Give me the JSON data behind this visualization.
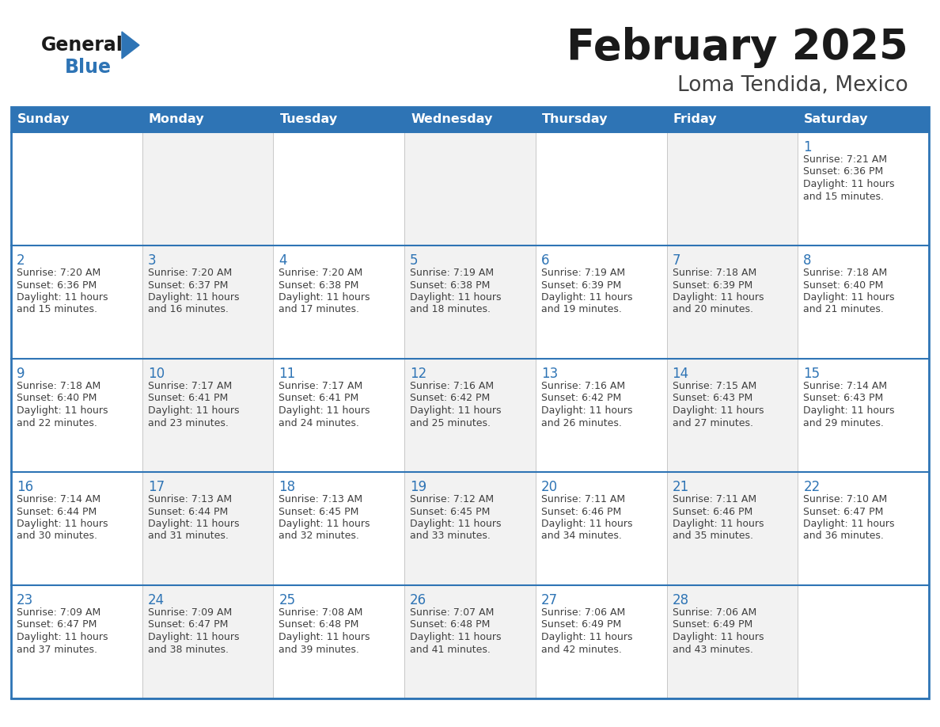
{
  "title": "February 2025",
  "subtitle": "Loma Tendida, Mexico",
  "days_of_week": [
    "Sunday",
    "Monday",
    "Tuesday",
    "Wednesday",
    "Thursday",
    "Friday",
    "Saturday"
  ],
  "header_bg": "#2E74B5",
  "header_text": "#FFFFFF",
  "cell_bg_white": "#FFFFFF",
  "cell_bg_gray": "#F2F2F2",
  "row_border_color": "#2E74B5",
  "col_border_color": "#C0C0C0",
  "day_number_color": "#2E74B5",
  "cell_text_color": "#404040",
  "title_color": "#1a1a1a",
  "subtitle_color": "#404040",
  "logo_general_color": "#1a1a1a",
  "logo_blue_color": "#2E74B5",
  "calendar_data": [
    [
      null,
      null,
      null,
      null,
      null,
      null,
      {
        "day": 1,
        "sunrise": "7:21 AM",
        "sunset": "6:36 PM",
        "daylight": "11 hours and 15 minutes."
      }
    ],
    [
      {
        "day": 2,
        "sunrise": "7:20 AM",
        "sunset": "6:36 PM",
        "daylight": "11 hours and 15 minutes."
      },
      {
        "day": 3,
        "sunrise": "7:20 AM",
        "sunset": "6:37 PM",
        "daylight": "11 hours and 16 minutes."
      },
      {
        "day": 4,
        "sunrise": "7:20 AM",
        "sunset": "6:38 PM",
        "daylight": "11 hours and 17 minutes."
      },
      {
        "day": 5,
        "sunrise": "7:19 AM",
        "sunset": "6:38 PM",
        "daylight": "11 hours and 18 minutes."
      },
      {
        "day": 6,
        "sunrise": "7:19 AM",
        "sunset": "6:39 PM",
        "daylight": "11 hours and 19 minutes."
      },
      {
        "day": 7,
        "sunrise": "7:18 AM",
        "sunset": "6:39 PM",
        "daylight": "11 hours and 20 minutes."
      },
      {
        "day": 8,
        "sunrise": "7:18 AM",
        "sunset": "6:40 PM",
        "daylight": "11 hours and 21 minutes."
      }
    ],
    [
      {
        "day": 9,
        "sunrise": "7:18 AM",
        "sunset": "6:40 PM",
        "daylight": "11 hours and 22 minutes."
      },
      {
        "day": 10,
        "sunrise": "7:17 AM",
        "sunset": "6:41 PM",
        "daylight": "11 hours and 23 minutes."
      },
      {
        "day": 11,
        "sunrise": "7:17 AM",
        "sunset": "6:41 PM",
        "daylight": "11 hours and 24 minutes."
      },
      {
        "day": 12,
        "sunrise": "7:16 AM",
        "sunset": "6:42 PM",
        "daylight": "11 hours and 25 minutes."
      },
      {
        "day": 13,
        "sunrise": "7:16 AM",
        "sunset": "6:42 PM",
        "daylight": "11 hours and 26 minutes."
      },
      {
        "day": 14,
        "sunrise": "7:15 AM",
        "sunset": "6:43 PM",
        "daylight": "11 hours and 27 minutes."
      },
      {
        "day": 15,
        "sunrise": "7:14 AM",
        "sunset": "6:43 PM",
        "daylight": "11 hours and 29 minutes."
      }
    ],
    [
      {
        "day": 16,
        "sunrise": "7:14 AM",
        "sunset": "6:44 PM",
        "daylight": "11 hours and 30 minutes."
      },
      {
        "day": 17,
        "sunrise": "7:13 AM",
        "sunset": "6:44 PM",
        "daylight": "11 hours and 31 minutes."
      },
      {
        "day": 18,
        "sunrise": "7:13 AM",
        "sunset": "6:45 PM",
        "daylight": "11 hours and 32 minutes."
      },
      {
        "day": 19,
        "sunrise": "7:12 AM",
        "sunset": "6:45 PM",
        "daylight": "11 hours and 33 minutes."
      },
      {
        "day": 20,
        "sunrise": "7:11 AM",
        "sunset": "6:46 PM",
        "daylight": "11 hours and 34 minutes."
      },
      {
        "day": 21,
        "sunrise": "7:11 AM",
        "sunset": "6:46 PM",
        "daylight": "11 hours and 35 minutes."
      },
      {
        "day": 22,
        "sunrise": "7:10 AM",
        "sunset": "6:47 PM",
        "daylight": "11 hours and 36 minutes."
      }
    ],
    [
      {
        "day": 23,
        "sunrise": "7:09 AM",
        "sunset": "6:47 PM",
        "daylight": "11 hours and 37 minutes."
      },
      {
        "day": 24,
        "sunrise": "7:09 AM",
        "sunset": "6:47 PM",
        "daylight": "11 hours and 38 minutes."
      },
      {
        "day": 25,
        "sunrise": "7:08 AM",
        "sunset": "6:48 PM",
        "daylight": "11 hours and 39 minutes."
      },
      {
        "day": 26,
        "sunrise": "7:07 AM",
        "sunset": "6:48 PM",
        "daylight": "11 hours and 41 minutes."
      },
      {
        "day": 27,
        "sunrise": "7:06 AM",
        "sunset": "6:49 PM",
        "daylight": "11 hours and 42 minutes."
      },
      {
        "day": 28,
        "sunrise": "7:06 AM",
        "sunset": "6:49 PM",
        "daylight": "11 hours and 43 minutes."
      },
      null
    ]
  ]
}
